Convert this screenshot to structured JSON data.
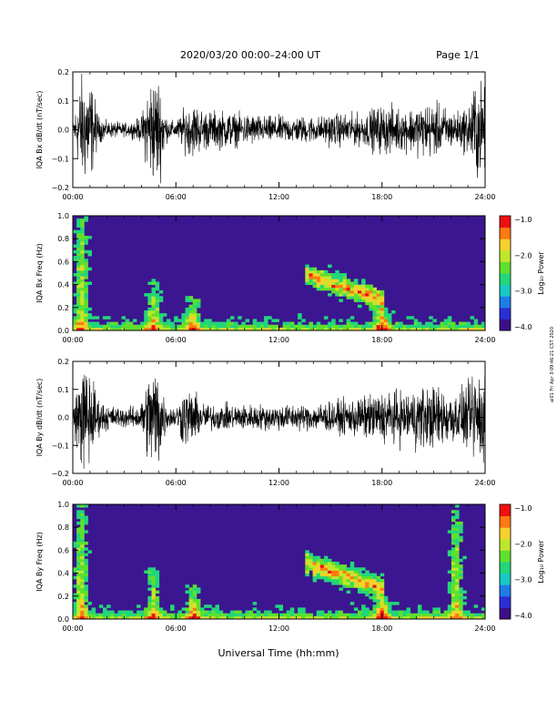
{
  "header": {
    "title": "2020/03/20  00:00–24:00 UT",
    "page": "Page 1/1"
  },
  "side_note": "ai01 Fri Apr 3 09:46:21 CST 2020",
  "colors": {
    "frame": "#000000",
    "spectrogram_background": "#3b1690",
    "colormap": [
      "#000000",
      "#3c0f87",
      "#2a2ed6",
      "#1f7de8",
      "#18c9c4",
      "#22d67a",
      "#5fe02d",
      "#bfe72a",
      "#f5d12a",
      "#ff7a12",
      "#f01010"
    ]
  },
  "chart_data": [
    {
      "type": "line",
      "id": "bx-dbdt",
      "title": "",
      "xlabel": "",
      "ylabel": "IQA Bx dB/dt (nT/sec)",
      "xlim": [
        0,
        24
      ],
      "ylim": [
        -0.2,
        0.2
      ],
      "x_tick_labels": [
        "00:00",
        "06:00",
        "12:00",
        "18:00",
        "24:00"
      ],
      "y_tick_labels": [
        "−0.2",
        "−0.1",
        "0.0",
        "0.1",
        "0.2"
      ],
      "series": [
        {
          "x": [
            0,
            0.5,
            1,
            1.5,
            2,
            2.5,
            3,
            3.5,
            4,
            4.5,
            5,
            5.5,
            6,
            6.5,
            7,
            7.5,
            8,
            8.5,
            9,
            9.5,
            10,
            10.5,
            11,
            11.5,
            12,
            12.5,
            13,
            13.5,
            14,
            14.5,
            15,
            15.5,
            16,
            16.5,
            17,
            17.5,
            18,
            18.5,
            19,
            19.5,
            20,
            20.5,
            21,
            21.5,
            22,
            22.5,
            23,
            23.5,
            24
          ],
          "amplitude": [
            0.03,
            0.2,
            0.2,
            0.05,
            0.03,
            0.03,
            0.025,
            0.03,
            0.05,
            0.2,
            0.2,
            0.04,
            0.03,
            0.08,
            0.1,
            0.08,
            0.07,
            0.07,
            0.07,
            0.06,
            0.06,
            0.06,
            0.05,
            0.05,
            0.05,
            0.05,
            0.05,
            0.05,
            0.05,
            0.05,
            0.06,
            0.06,
            0.06,
            0.06,
            0.06,
            0.08,
            0.09,
            0.09,
            0.08,
            0.08,
            0.09,
            0.1,
            0.1,
            0.09,
            0.07,
            0.07,
            0.09,
            0.2,
            0.15
          ]
        }
      ]
    },
    {
      "type": "heatmap",
      "id": "bx-freq",
      "xlabel": "",
      "ylabel": "IQA Bx Freq (Hz)",
      "xlim": [
        0,
        24
      ],
      "ylim": [
        0.0,
        1.0
      ],
      "x_tick_labels": [
        "00:00",
        "06:00",
        "12:00",
        "18:00",
        "24:00"
      ],
      "y_tick_labels": [
        "0.0",
        "0.2",
        "0.4",
        "0.6",
        "0.8",
        "1.0"
      ],
      "colorbar": {
        "label": "Log₁₀ Power",
        "range": [
          -4.0,
          -1.0
        ],
        "tick_labels": [
          "−1.0",
          "−2.0",
          "−3.0",
          "−4.0"
        ]
      },
      "features": [
        {
          "x": 0.5,
          "y_top": 1.0,
          "intensity": 0.5
        },
        {
          "x": 4.7,
          "y_top": 0.45,
          "intensity": 0.45
        },
        {
          "x": 7.0,
          "y_top": 0.3,
          "intensity": 0.55
        },
        {
          "x_start": 13.5,
          "x_end": 18.0,
          "y_center": 0.35,
          "intensity": 0.6
        },
        {
          "x": 18.0,
          "y_top": 0.2,
          "intensity": 0.75
        }
      ]
    },
    {
      "type": "line",
      "id": "by-dbdt",
      "xlabel": "",
      "ylabel": "IQA By dB/dt (nT/sec)",
      "xlim": [
        0,
        24
      ],
      "ylim": [
        -0.2,
        0.2
      ],
      "x_tick_labels": [
        "00:00",
        "06:00",
        "12:00",
        "18:00",
        "24:00"
      ],
      "y_tick_labels": [
        "−0.2",
        "−0.1",
        "0.0",
        "0.1",
        "0.2"
      ],
      "series": [
        {
          "x": [
            0,
            0.5,
            1,
            1.5,
            2,
            2.5,
            3,
            3.5,
            4,
            4.5,
            5,
            5.5,
            6,
            6.5,
            7,
            7.5,
            8,
            8.5,
            9,
            9.5,
            10,
            10.5,
            11,
            11.5,
            12,
            12.5,
            13,
            13.5,
            14,
            14.5,
            15,
            15.5,
            16,
            16.5,
            17,
            17.5,
            18,
            18.5,
            19,
            19.5,
            20,
            20.5,
            21,
            21.5,
            22,
            22.5,
            23,
            23.5,
            24
          ],
          "amplitude": [
            0.04,
            0.2,
            0.2,
            0.07,
            0.05,
            0.04,
            0.04,
            0.04,
            0.06,
            0.2,
            0.2,
            0.04,
            0.04,
            0.12,
            0.1,
            0.06,
            0.05,
            0.05,
            0.05,
            0.05,
            0.05,
            0.05,
            0.05,
            0.05,
            0.05,
            0.05,
            0.05,
            0.05,
            0.05,
            0.06,
            0.06,
            0.06,
            0.07,
            0.08,
            0.08,
            0.09,
            0.1,
            0.1,
            0.1,
            0.1,
            0.12,
            0.12,
            0.12,
            0.12,
            0.1,
            0.1,
            0.12,
            0.2,
            0.15
          ]
        }
      ]
    },
    {
      "type": "heatmap",
      "id": "by-freq",
      "xlabel": "Universal Time (hh:mm)",
      "ylabel": "IQA By Freq (Hz)",
      "xlim": [
        0,
        24
      ],
      "ylim": [
        0.0,
        1.0
      ],
      "x_tick_labels": [
        "00:00",
        "06:00",
        "12:00",
        "18:00",
        "24:00"
      ],
      "y_tick_labels": [
        "0.0",
        "0.2",
        "0.4",
        "0.6",
        "0.8",
        "1.0"
      ],
      "colorbar": {
        "label": "Log₁₀ Power",
        "range": [
          -4.0,
          -1.0
        ],
        "tick_labels": [
          "−1.0",
          "−2.0",
          "−3.0",
          "−4.0"
        ]
      },
      "features": [
        {
          "x": 0.5,
          "y_top": 1.0,
          "intensity": 0.5
        },
        {
          "x": 4.7,
          "y_top": 0.45,
          "intensity": 0.45
        },
        {
          "x": 7.0,
          "y_top": 0.3,
          "intensity": 0.55
        },
        {
          "x_start": 13.5,
          "x_end": 18.0,
          "y_center": 0.35,
          "intensity": 0.6
        },
        {
          "x": 18.0,
          "y_top": 0.2,
          "intensity": 0.75
        },
        {
          "x": 22.3,
          "y_top": 1.0,
          "intensity": 0.45
        }
      ]
    }
  ]
}
